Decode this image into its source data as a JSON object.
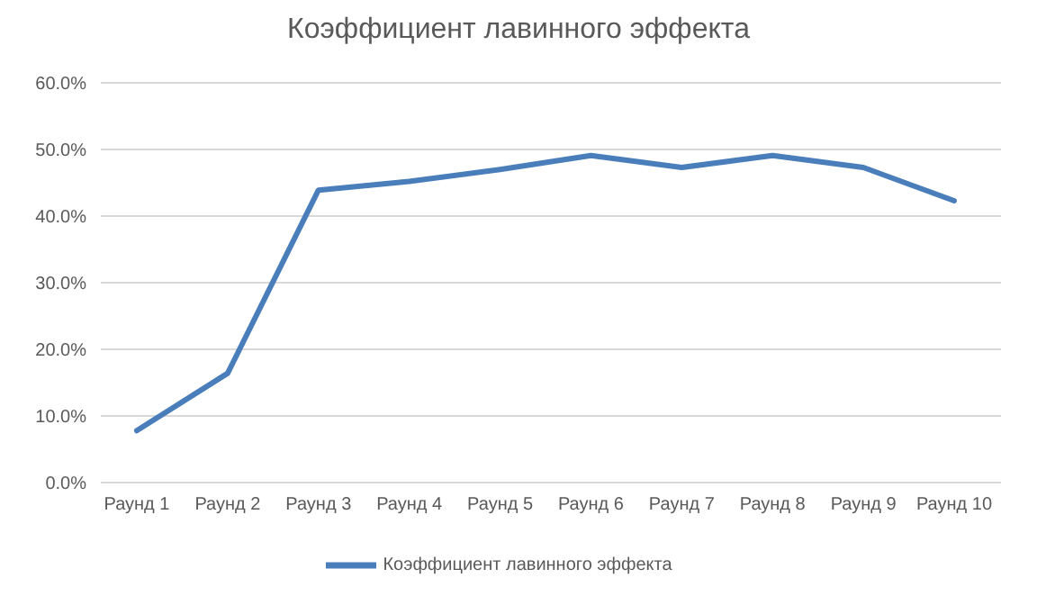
{
  "chart_data": {
    "type": "line",
    "title": "Коэффициент лавинного эффекта",
    "categories": [
      "Раунд 1",
      "Раунд 2",
      "Раунд 3",
      "Раунд 4",
      "Раунд 5",
      "Раунд 6",
      "Раунд 7",
      "Раунд 8",
      "Раунд 9",
      "Раунд 10"
    ],
    "series": [
      {
        "name": "Коэффициент лавинного эффекта",
        "color": "#4a7ebb",
        "values": [
          7.8,
          16.4,
          43.9,
          45.2,
          47,
          49.1,
          47.3,
          49.1,
          47.3,
          42.3
        ]
      }
    ],
    "ylim": [
      0,
      60
    ],
    "yticks": [
      {
        "value": 0,
        "label": "0.0%"
      },
      {
        "value": 10,
        "label": "10.0%"
      },
      {
        "value": 20,
        "label": "20.0%"
      },
      {
        "value": 30,
        "label": "30.0%"
      },
      {
        "value": 40,
        "label": "40.0%"
      },
      {
        "value": 50,
        "label": "50.0%"
      },
      {
        "value": 60,
        "label": "60.0%"
      }
    ],
    "grid": "y",
    "legend": "bottom",
    "marker": "none",
    "line_style": "solid"
  }
}
